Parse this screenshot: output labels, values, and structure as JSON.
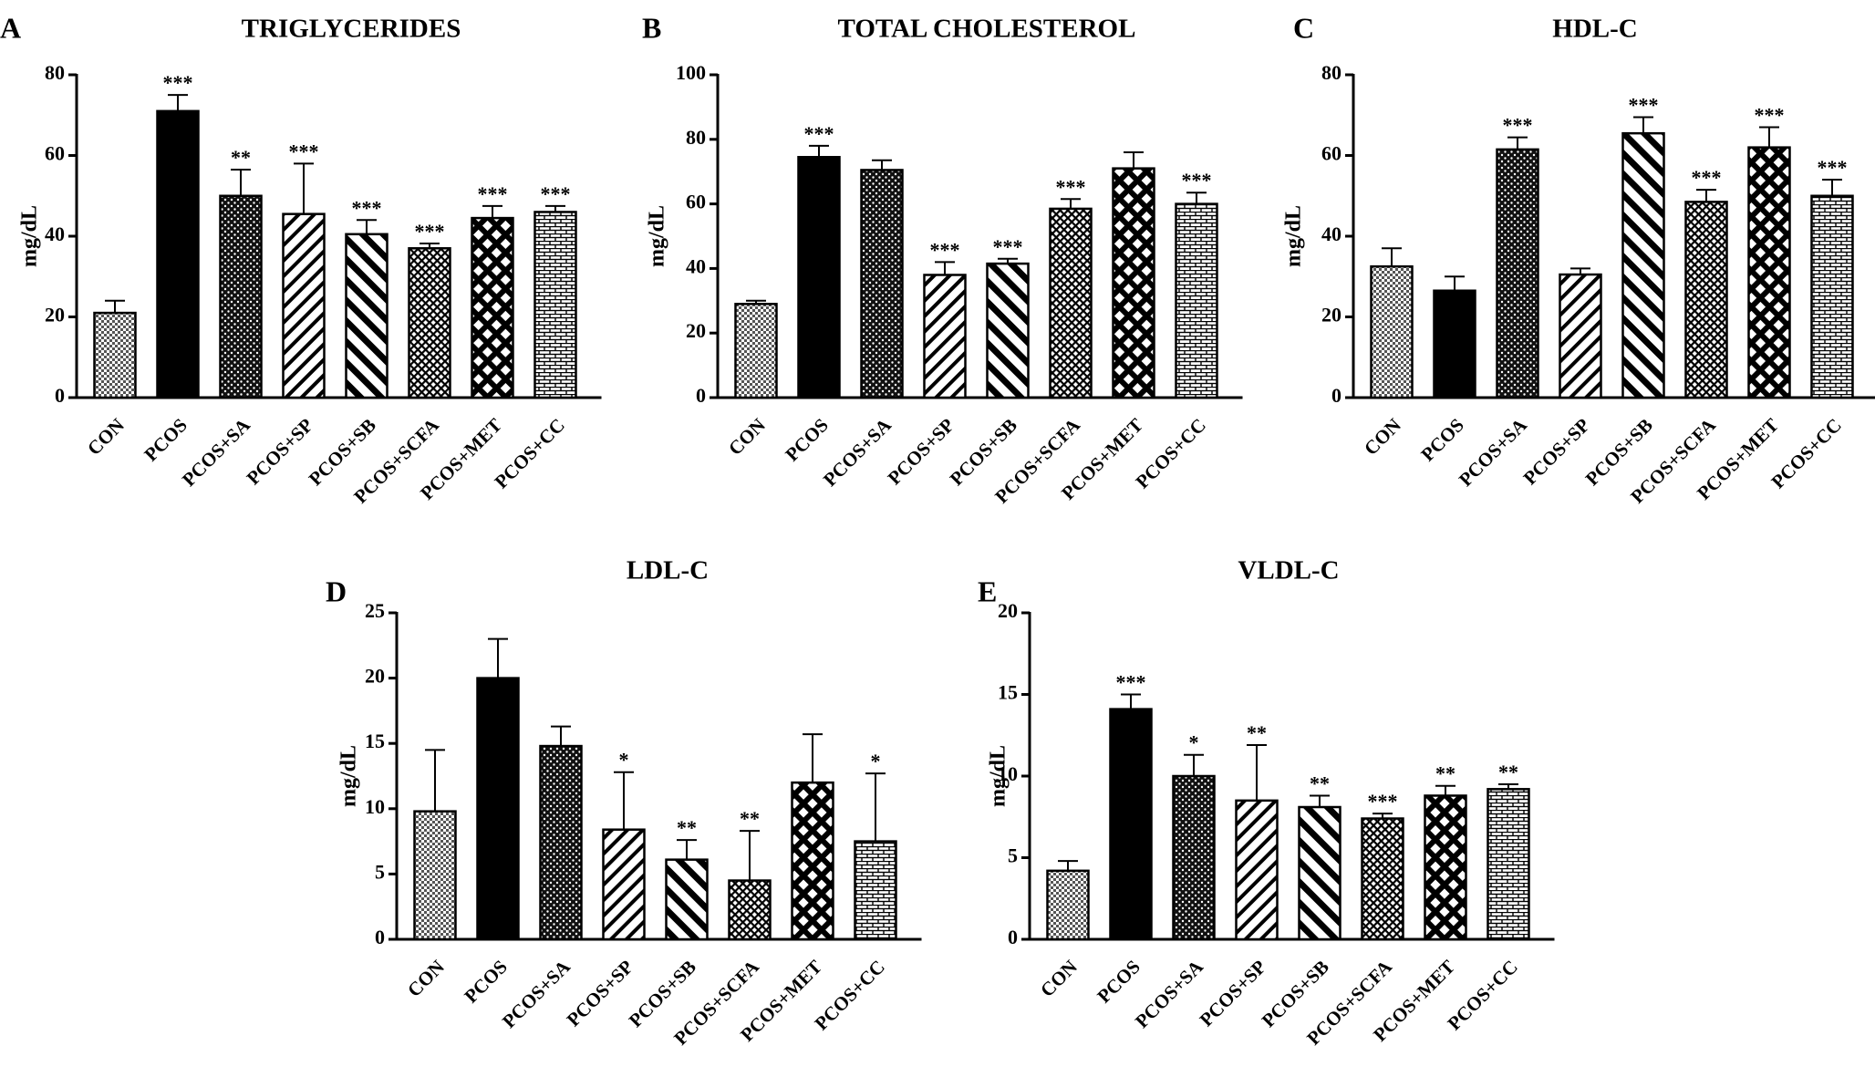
{
  "figure": {
    "categories": [
      "CON",
      "PCOS",
      "PCOS+SA",
      "PCOS+SP",
      "PCOS+SB",
      "PCOS+SCFA",
      "PCOS+MET",
      "PCOS+CC"
    ],
    "pattern_names": [
      "checker-grid",
      "solid-black",
      "dots",
      "forward-diagonal",
      "back-diagonal-heavy",
      "dense-crosshatch",
      "diamond-lattice",
      "brick"
    ]
  },
  "chart_data": [
    {
      "panel": "A",
      "type": "bar",
      "title": "TRIGLYCERIDES",
      "ylabel": "mg/dL",
      "ylim": [
        0,
        80
      ],
      "yticks": [
        0,
        20,
        40,
        60,
        80
      ],
      "values": [
        21,
        71,
        50,
        45.5,
        40.5,
        37,
        44.5,
        46
      ],
      "errors": [
        3,
        4,
        6.5,
        12.5,
        3.5,
        1.2,
        3,
        1.5
      ],
      "significance": [
        "",
        "***",
        "**",
        "***",
        "***",
        "***",
        "***",
        "***"
      ]
    },
    {
      "panel": "B",
      "type": "bar",
      "title": "TOTAL CHOLESTEROL",
      "ylabel": "mg/dL",
      "ylim": [
        0,
        100
      ],
      "yticks": [
        0,
        20,
        40,
        60,
        80,
        100
      ],
      "values": [
        29,
        74.5,
        70.5,
        38,
        41.5,
        58.5,
        71,
        60
      ],
      "errors": [
        1,
        3.5,
        3,
        4,
        1.5,
        3,
        5,
        3.5
      ],
      "significance": [
        "",
        "***",
        "",
        "***",
        "***",
        "***",
        "",
        "***"
      ]
    },
    {
      "panel": "C",
      "type": "bar",
      "title": "HDL-C",
      "ylabel": "mg/dL",
      "ylim": [
        0,
        80
      ],
      "yticks": [
        0,
        20,
        40,
        60,
        80
      ],
      "values": [
        32.5,
        26.5,
        61.5,
        30.5,
        65.5,
        48.5,
        62,
        50
      ],
      "errors": [
        4.5,
        3.5,
        3,
        1.5,
        4,
        3,
        5,
        4
      ],
      "significance": [
        "",
        "",
        "***",
        "",
        "***",
        "***",
        "***",
        "***"
      ]
    },
    {
      "panel": "D",
      "type": "bar",
      "title": "LDL-C",
      "ylabel": "mg/dL",
      "ylim": [
        0,
        25
      ],
      "yticks": [
        0,
        5,
        10,
        15,
        20,
        25
      ],
      "values": [
        9.8,
        20,
        14.8,
        8.4,
        6.1,
        4.5,
        12,
        7.5
      ],
      "errors": [
        4.7,
        3,
        1.5,
        4.4,
        1.5,
        3.8,
        3.7,
        5.2
      ],
      "significance": [
        "",
        "",
        "",
        "*",
        "**",
        "**",
        "",
        "*"
      ]
    },
    {
      "panel": "E",
      "type": "bar",
      "title": "VLDL-C",
      "ylabel": "mg/dL",
      "ylim": [
        0,
        20
      ],
      "yticks": [
        0,
        5,
        10,
        15,
        20
      ],
      "values": [
        4.2,
        14.1,
        10,
        8.5,
        8.1,
        7.4,
        8.8,
        9.2
      ],
      "errors": [
        0.6,
        0.9,
        1.3,
        3.4,
        0.7,
        0.3,
        0.6,
        0.3
      ],
      "significance": [
        "",
        "***",
        "*",
        "**",
        "**",
        "***",
        "**",
        "**"
      ]
    }
  ]
}
